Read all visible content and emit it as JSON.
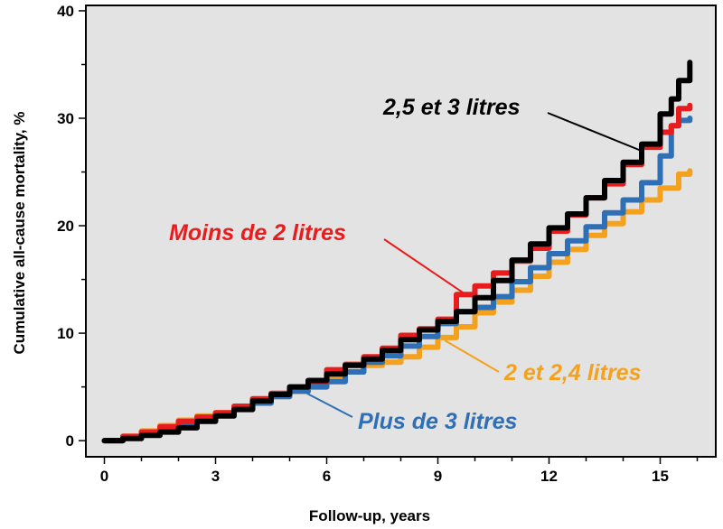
{
  "chart_data": {
    "type": "line",
    "xlabel": "Follow-up, years",
    "ylabel": "Cumulative  all-cause mortality, %",
    "xlim": [
      -0.5,
      16.5
    ],
    "ylim": [
      -1.5,
      40.5
    ],
    "xticks": [
      0,
      3,
      6,
      9,
      12,
      15
    ],
    "yticks": [
      0,
      10,
      20,
      30,
      40
    ],
    "xtick_labels": [
      "0",
      "3",
      "6",
      "9",
      "12",
      "15"
    ],
    "ytick_labels": [
      "0",
      "10",
      "20",
      "30",
      "40"
    ],
    "grid": false,
    "legend": "inline labels with leader lines",
    "colors": {
      "plot_background": "#e3e3e3"
    },
    "series": [
      {
        "name": "2 et 2,4 litres",
        "color": "#f4a11d",
        "x": [
          0,
          0.5,
          1,
          1.5,
          2,
          2.5,
          3,
          3.5,
          4,
          4.5,
          5,
          5.5,
          6,
          6.5,
          7,
          7.5,
          8,
          8.5,
          9,
          9.5,
          10,
          10.5,
          11,
          11.5,
          12,
          12.5,
          13,
          13.5,
          14,
          14.5,
          15,
          15.5,
          15.8
        ],
        "y": [
          0,
          0.4,
          0.9,
          1.4,
          1.9,
          2.3,
          2.6,
          3.1,
          3.7,
          4.1,
          4.6,
          5.2,
          5.8,
          6.4,
          7.0,
          7.3,
          7.8,
          8.7,
          9.6,
          10.6,
          11.9,
          12.9,
          14.0,
          15.3,
          16.6,
          17.8,
          19.1,
          20.2,
          21.3,
          22.4,
          23.5,
          24.8,
          25.1
        ]
      },
      {
        "name": "Plus de 3 litres",
        "color": "#2e6fb5",
        "x": [
          0,
          0.5,
          1,
          1.5,
          2,
          2.5,
          3,
          3.5,
          4,
          4.5,
          5,
          5.5,
          6,
          6.5,
          7,
          7.5,
          8,
          8.5,
          9,
          9.5,
          10,
          10.5,
          11,
          11.5,
          12,
          12.5,
          13,
          13.5,
          14,
          14.5,
          15,
          15.3,
          15.5,
          15.8
        ],
        "y": [
          0,
          0.3,
          0.7,
          1.2,
          1.6,
          2.1,
          2.5,
          3.0,
          3.5,
          4.1,
          4.6,
          5.0,
          5.5,
          6.4,
          7.3,
          7.9,
          8.8,
          9.7,
          10.9,
          12.0,
          12.4,
          13.4,
          14.8,
          16.1,
          17.4,
          18.6,
          19.9,
          21.2,
          22.4,
          24.0,
          26.5,
          29.3,
          29.8,
          30.0
        ]
      },
      {
        "name": "Moins de 2 litres",
        "color": "#e81c1c",
        "x": [
          0,
          0.5,
          1,
          1.5,
          2,
          2.5,
          3,
          3.5,
          4,
          4.5,
          5,
          5.5,
          6,
          6.5,
          7,
          7.5,
          8,
          8.5,
          9,
          9.5,
          10,
          10.5,
          11,
          11.5,
          12,
          12.5,
          13,
          13.5,
          14,
          14.5,
          15,
          15.3,
          15.5,
          15.8
        ],
        "y": [
          0,
          0.4,
          0.8,
          1.3,
          1.8,
          2.2,
          2.6,
          3.2,
          3.9,
          4.4,
          5.0,
          5.5,
          6.6,
          7.1,
          7.8,
          8.6,
          9.8,
          10.4,
          11.3,
          13.6,
          14.4,
          15.6,
          16.7,
          17.9,
          19.5,
          21.0,
          22.6,
          23.9,
          25.7,
          27.3,
          28.7,
          29.3,
          30.9,
          31.2
        ]
      },
      {
        "name": "2,5 et 3 litres",
        "color": "#000000",
        "x": [
          0,
          0.5,
          1,
          1.5,
          2,
          2.5,
          3,
          3.5,
          4,
          4.5,
          5,
          5.5,
          6,
          6.5,
          7,
          7.5,
          8,
          8.5,
          9,
          9.5,
          10,
          10.5,
          11,
          11.5,
          12,
          12.5,
          13,
          13.5,
          14,
          14.5,
          15,
          15.3,
          15.5,
          15.8
        ],
        "y": [
          0,
          0.2,
          0.5,
          0.8,
          1.2,
          1.8,
          2.3,
          2.9,
          3.7,
          4.3,
          5.0,
          5.6,
          6.2,
          7.0,
          7.6,
          8.4,
          9.4,
          10.3,
          11.1,
          12.0,
          13.3,
          14.9,
          16.8,
          18.3,
          19.8,
          21.1,
          22.6,
          24.2,
          25.9,
          27.6,
          30.4,
          31.8,
          33.5,
          35.2
        ]
      }
    ]
  }
}
